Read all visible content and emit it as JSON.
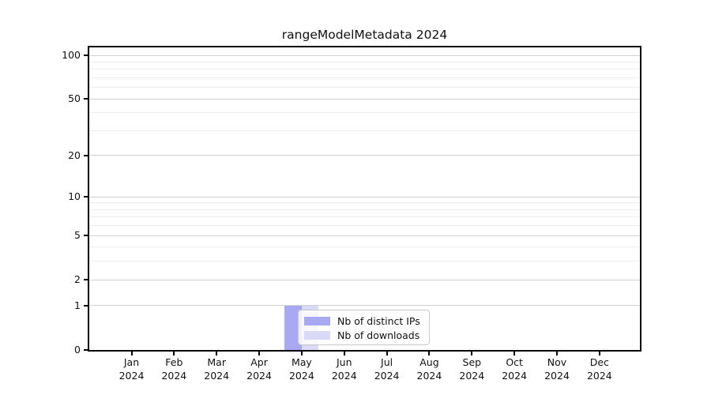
{
  "chart_data": {
    "type": "bar",
    "title": "rangeModelMetadata 2024",
    "xlabel": "",
    "ylabel": "",
    "year": "2024",
    "categories": [
      "Jan",
      "Feb",
      "Mar",
      "Apr",
      "May",
      "Jun",
      "Jul",
      "Aug",
      "Sep",
      "Oct",
      "Nov",
      "Dec"
    ],
    "series": [
      {
        "name": "Nb of distinct IPs",
        "color": "#a9a9f2",
        "values": [
          0,
          0,
          0,
          0,
          1,
          0,
          0,
          0,
          0,
          0,
          0,
          0
        ]
      },
      {
        "name": "Nb of downloads",
        "color": "#d9d9f8",
        "values": [
          0,
          0,
          0,
          0,
          1,
          0,
          0,
          0,
          0,
          0,
          0,
          0
        ]
      }
    ],
    "y_scale": "log1p",
    "y_ticks": [
      0,
      1,
      2,
      5,
      10,
      20,
      50,
      100
    ],
    "y_minor_ticks": [
      3,
      4,
      6,
      7,
      8,
      9,
      30,
      40,
      60,
      70,
      80,
      90
    ],
    "ylim": [
      0,
      113
    ],
    "grid": true,
    "legend_position": "lower center",
    "colors": {
      "axis": "#000000",
      "grid_major": "#d2d2d2",
      "grid_minor": "#ececec",
      "legend_border": "#c8c8c8",
      "text": "#111111"
    }
  }
}
